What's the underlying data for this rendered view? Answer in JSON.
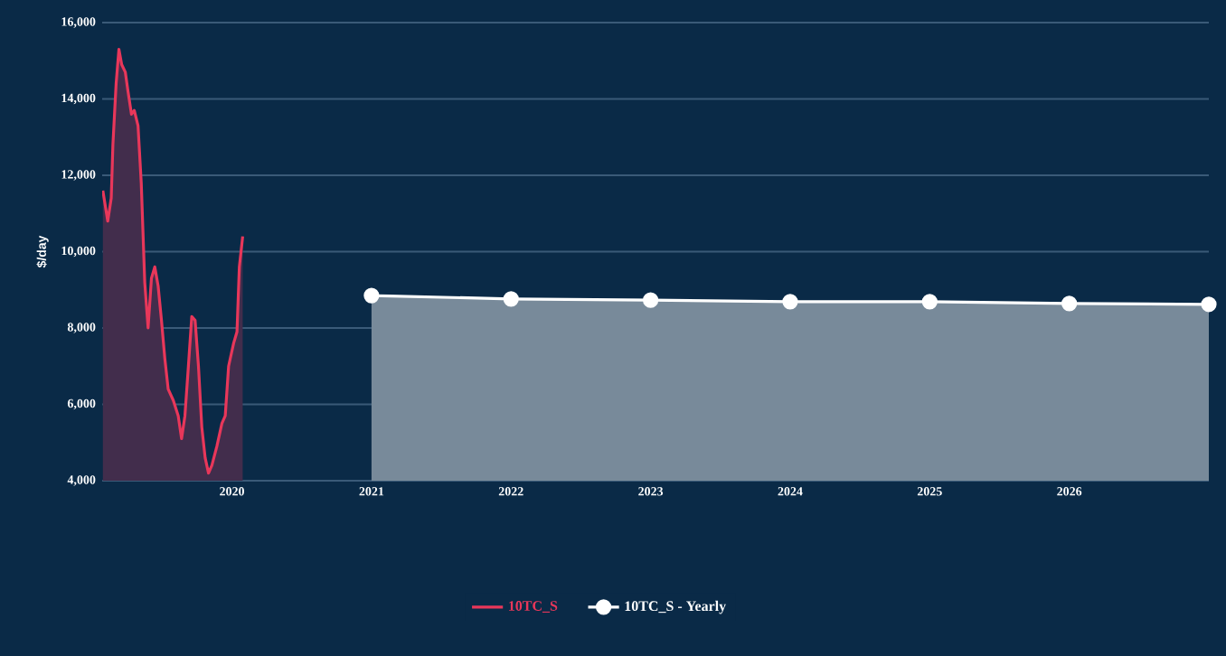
{
  "chart_data": {
    "type": "area",
    "ylabel": "$/day",
    "xlim": [
      2019.07,
      2027.0
    ],
    "ylim": [
      4000,
      16000
    ],
    "xticks": [
      2020,
      2021,
      2022,
      2023,
      2024,
      2025,
      2026
    ],
    "yticks": [
      {
        "value": 4000,
        "label": "4,000"
      },
      {
        "value": 6000,
        "label": "6,000"
      },
      {
        "value": 8000,
        "label": "8,000"
      },
      {
        "value": 10000,
        "label": "10,000"
      },
      {
        "value": 12000,
        "label": "12,000"
      },
      {
        "value": 14000,
        "label": "14,000"
      },
      {
        "value": 16000,
        "label": "16,000"
      }
    ],
    "grid": "y",
    "legend": "bottom",
    "series": [
      {
        "name": "10TC_S",
        "color": "#e8375a",
        "marker": "none",
        "x": [
          2019.075,
          2019.11,
          2019.135,
          2019.147,
          2019.17,
          2019.19,
          2019.21,
          2019.236,
          2019.255,
          2019.28,
          2019.3,
          2019.327,
          2019.35,
          2019.375,
          2019.399,
          2019.423,
          2019.447,
          2019.471,
          2019.495,
          2019.519,
          2019.543,
          2019.58,
          2019.615,
          2019.639,
          2019.663,
          2019.688,
          2019.712,
          2019.736,
          2019.76,
          2019.784,
          2019.808,
          2019.832,
          2019.856,
          2019.892,
          2019.928,
          2019.952,
          2019.976,
          2020.012,
          2020.036,
          2020.053,
          2020.077
        ],
        "values": [
          11600,
          10800,
          11400,
          12800,
          14400,
          15300,
          14900,
          14700,
          14200,
          13600,
          13700,
          13300,
          11800,
          9200,
          8000,
          9300,
          9600,
          9100,
          8200,
          7200,
          6400,
          6100,
          5700,
          5100,
          5700,
          7000,
          8300,
          8200,
          7000,
          5400,
          4600,
          4200,
          4400,
          4900,
          5500,
          5700,
          7000,
          7600,
          7900,
          9600,
          10400
        ]
      },
      {
        "name": "10TC_S - Yearly",
        "color": "#ffffff",
        "marker": "circle",
        "x": [
          2021,
          2022,
          2023,
          2024,
          2025,
          2026,
          2027
        ],
        "values": [
          8850,
          8760,
          8730,
          8690,
          8690,
          8640,
          8620
        ]
      }
    ]
  }
}
